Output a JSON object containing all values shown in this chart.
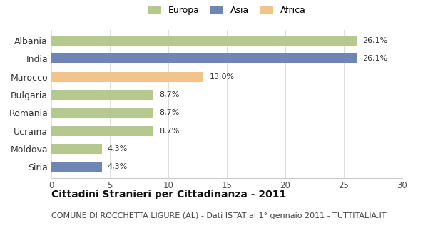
{
  "categories": [
    "Albania",
    "India",
    "Marocco",
    "Bulgaria",
    "Romania",
    "Ucraina",
    "Moldova",
    "Siria"
  ],
  "values": [
    26.1,
    26.1,
    13.0,
    8.7,
    8.7,
    8.7,
    4.3,
    4.3
  ],
  "labels": [
    "26,1%",
    "26,1%",
    "13,0%",
    "8,7%",
    "8,7%",
    "8,7%",
    "4,3%",
    "4,3%"
  ],
  "colors": [
    "#b5c98e",
    "#6e86b5",
    "#f0c48a",
    "#b5c98e",
    "#b5c98e",
    "#b5c98e",
    "#b5c98e",
    "#6e86b5"
  ],
  "legend_labels": [
    "Europa",
    "Asia",
    "Africa"
  ],
  "legend_colors": [
    "#b5c98e",
    "#6e86b5",
    "#f0c48a"
  ],
  "xlim": [
    0,
    30
  ],
  "xticks": [
    0,
    5,
    10,
    15,
    20,
    25,
    30
  ],
  "title": "Cittadini Stranieri per Cittadinanza - 2011",
  "subtitle": "COMUNE DI ROCCHETTA LIGURE (AL) - Dati ISTAT al 1° gennaio 2011 - TUTTITALIA.IT",
  "title_fontsize": 10,
  "subtitle_fontsize": 8,
  "background_color": "#ffffff",
  "bar_height": 0.55
}
